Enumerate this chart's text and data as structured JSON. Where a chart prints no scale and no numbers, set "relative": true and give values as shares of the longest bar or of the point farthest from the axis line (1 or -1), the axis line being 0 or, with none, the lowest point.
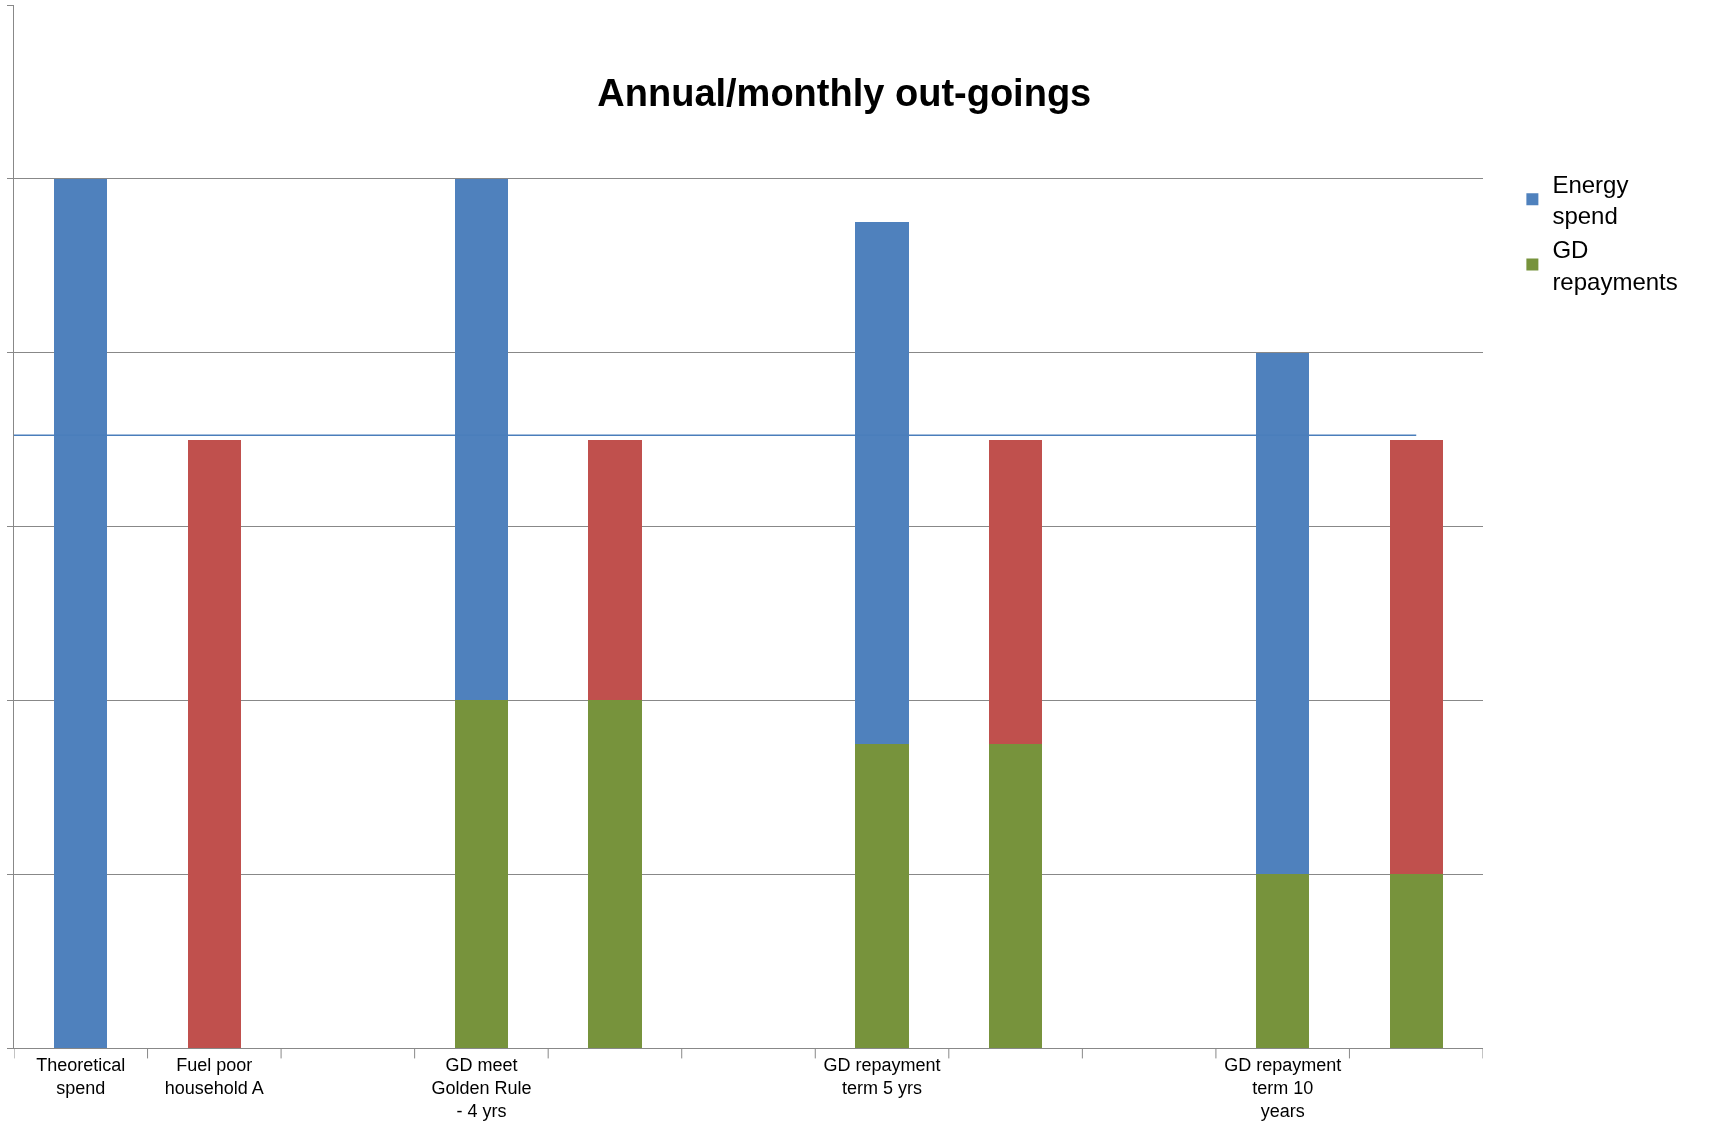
{
  "chart_data": {
    "type": "bar",
    "title": "Annual/monthly out-goings",
    "relative": true,
    "stacked": true,
    "grid": "y",
    "legend": "right",
    "categories": [
      "Theoretical spend",
      "Fuel poor household A",
      null,
      "GD meet Golden Rule - 4 yrs",
      null,
      null,
      "GD repayment term 5 yrs",
      null,
      null,
      "GD repayment term 10 years",
      null
    ],
    "series": [
      {
        "name": "GD repayments",
        "color": "#77933c",
        "values": [
          null,
          null,
          null,
          0.4,
          0.4,
          null,
          0.35,
          0.35,
          null,
          0.2,
          0.2
        ]
      },
      {
        "name": "Energy spend",
        "color": "#4f81bd",
        "values": [
          1.0,
          null,
          null,
          0.6,
          null,
          null,
          0.6,
          null,
          null,
          0.6,
          null
        ]
      },
      {
        "color": "#c0504d",
        "values": [
          null,
          0.7,
          null,
          null,
          0.3,
          null,
          null,
          0.35,
          null,
          null,
          0.5
        ]
      }
    ],
    "ref_lines": [
      {
        "axis": "y",
        "value": 0.705,
        "color": "#4a7ebb"
      }
    ]
  }
}
